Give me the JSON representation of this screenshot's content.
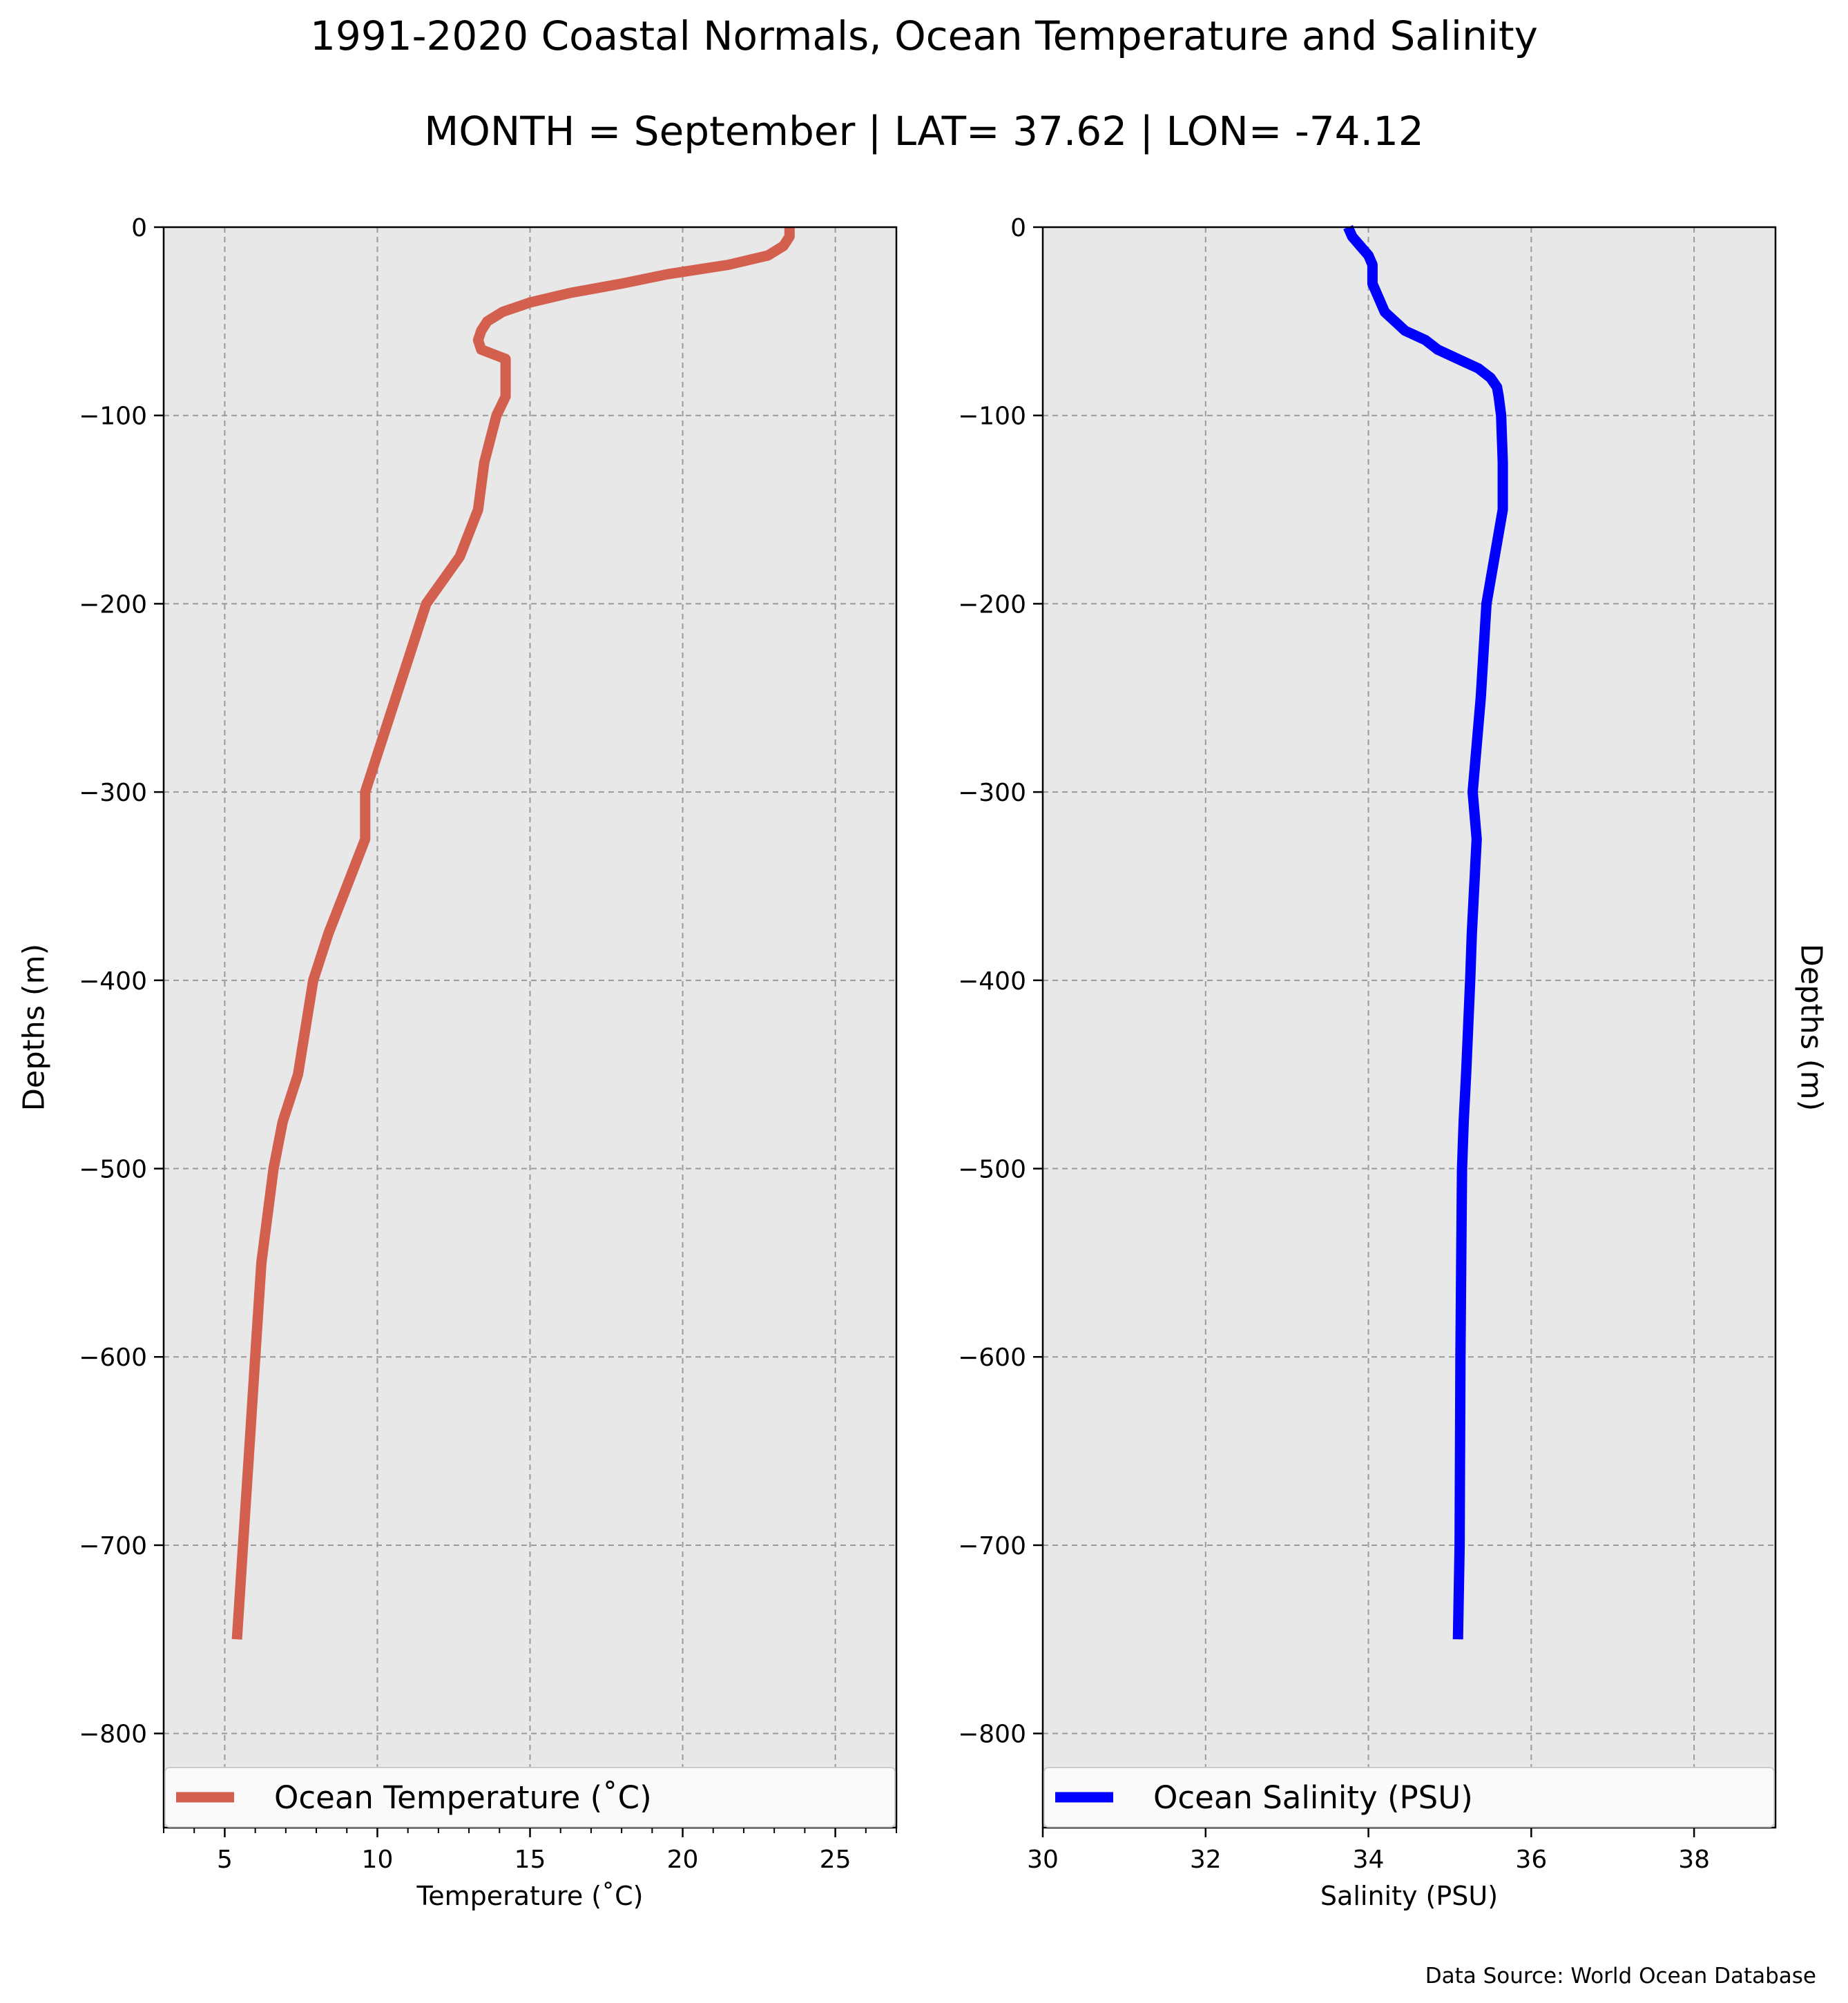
{
  "figure": {
    "title_line1": "1991-2020 Coastal Normals, Ocean Temperature and Salinity",
    "title_line2": "MONTH = September | LAT= 37.62 | LON= -74.12",
    "source": "Data Source: World Ocean Database"
  },
  "colors": {
    "panel_background": "#e8e8e8",
    "grid": "#9a9a9a",
    "temperature_line": "#d3604f",
    "salinity_line": "#0000ff"
  },
  "chart_data": [
    {
      "type": "line",
      "xlabel": "Temperature ($^\\circ$C)",
      "ylabel": "Depths (m)",
      "xlim": [
        3,
        27
      ],
      "ylim": [
        -850,
        0
      ],
      "xticks": [
        5,
        10,
        15,
        20,
        25
      ],
      "xtick_labels": [
        "5",
        "10",
        "15",
        "20",
        "25"
      ],
      "yticks": [
        0,
        -100,
        -200,
        -300,
        -400,
        -500,
        -600,
        -700,
        -800
      ],
      "ytick_labels": [
        "0",
        "−100",
        "−200",
        "−300",
        "−400",
        "−500",
        "−600",
        "−700",
        "−800"
      ],
      "grid": true,
      "legend_position": "bottom",
      "series": [
        {
          "name": "Ocean Temperature ($^\\circ$C)",
          "x": [
            23.5,
            23.5,
            23.3,
            22.8,
            21.5,
            19.5,
            18.0,
            16.3,
            15.0,
            14.1,
            13.6,
            13.4,
            13.3,
            13.4,
            14.2,
            14.2,
            14.2,
            13.9,
            13.5,
            13.3,
            12.7,
            11.6,
            10.6,
            9.6,
            9.6,
            9.0,
            8.4,
            7.9,
            7.4,
            6.9,
            6.6,
            6.2,
            6.0,
            5.8,
            5.6,
            5.4
          ],
          "y": [
            0,
            -5,
            -10,
            -15,
            -20,
            -25,
            -30,
            -35,
            -40,
            -45,
            -50,
            -55,
            -60,
            -65,
            -70,
            -80,
            -90,
            -100,
            -125,
            -150,
            -175,
            -200,
            -250,
            -300,
            -325,
            -350,
            -375,
            -400,
            -450,
            -475,
            -500,
            -550,
            -600,
            -650,
            -700,
            -750
          ]
        }
      ]
    },
    {
      "type": "line",
      "xlabel": "Salinity (PSU)",
      "ylabel": "Depths (m)",
      "xlim": [
        30,
        39
      ],
      "ylim": [
        -850,
        0
      ],
      "xticks": [
        30,
        32,
        34,
        36,
        38
      ],
      "xtick_labels": [
        "30",
        "32",
        "34",
        "36",
        "38"
      ],
      "yticks": [
        0,
        -100,
        -200,
        -300,
        -400,
        -500,
        -600,
        -700,
        -800
      ],
      "ytick_labels": [
        "0",
        "−100",
        "−200",
        "−300",
        "−400",
        "−500",
        "−600",
        "−700",
        "−800"
      ],
      "grid": true,
      "legend_position": "bottom",
      "series": [
        {
          "name": "Ocean Salinity (PSU)",
          "x": [
            33.75,
            33.8,
            33.9,
            34.0,
            34.05,
            34.05,
            34.05,
            34.1,
            34.2,
            34.45,
            34.7,
            34.85,
            35.1,
            35.35,
            35.5,
            35.58,
            35.6,
            35.63,
            35.65,
            35.65,
            35.55,
            35.45,
            35.38,
            35.28,
            35.33,
            35.3,
            35.27,
            35.25,
            35.2,
            35.17,
            35.15,
            35.14,
            35.13,
            35.12,
            35.1
          ],
          "y": [
            0,
            -5,
            -10,
            -15,
            -20,
            -25,
            -30,
            -35,
            -45,
            -55,
            -60,
            -65,
            -70,
            -75,
            -80,
            -85,
            -90,
            -100,
            -125,
            -150,
            -175,
            -200,
            -250,
            -300,
            -325,
            -350,
            -375,
            -400,
            -450,
            -475,
            -500,
            -550,
            -600,
            -700,
            -750
          ]
        }
      ]
    }
  ]
}
